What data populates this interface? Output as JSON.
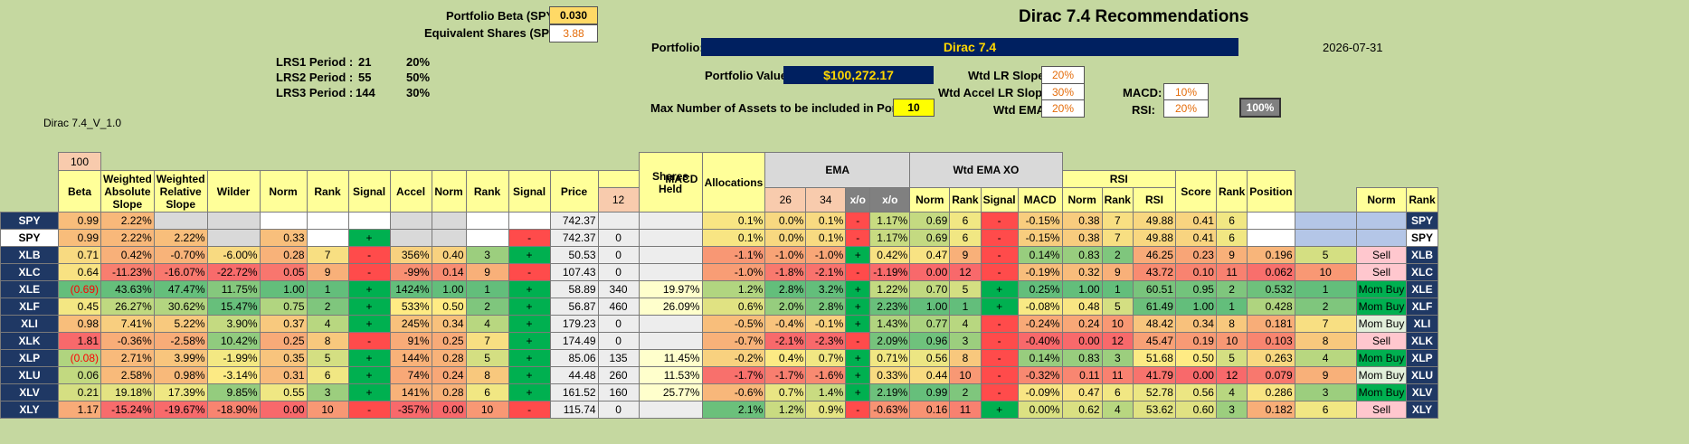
{
  "header": {
    "portfolio_beta_label": "Portfolio Beta (SPY):",
    "portfolio_beta_value": "0.030",
    "equiv_shares_label": "Equivalent Shares (SPY):",
    "equiv_shares_value": "3.88",
    "title": "Dirac 7.4 Recommendations",
    "portfolio_label": "Portfolio:",
    "portfolio_name": "Dirac 7.4",
    "date": "2026-07-31",
    "lrs": [
      {
        "label": "LRS1 Period :",
        "period": "21",
        "pct": "20%"
      },
      {
        "label": "LRS2 Period :",
        "period": "55",
        "pct": "50%"
      },
      {
        "label": "LRS3 Period :",
        "period": "144",
        "pct": "30%"
      }
    ],
    "portfolio_value_label": "Portfolio Value:",
    "portfolio_value": "$100,272.17",
    "max_assets_label": "Max Number of Assets to be included in Portfolio:",
    "max_assets_value": "10",
    "version": "Dirac 7.4_V_1.0",
    "weights": {
      "wtd_lr_slope_label": "Wtd LR Slope:",
      "wtd_lr_slope": "20%",
      "wtd_accel_label": "Wtd Accel LR Slope:",
      "wtd_accel": "30%",
      "wtd_ema_label": "Wtd EMA:",
      "wtd_ema": "20%",
      "macd_label": "MACD:",
      "macd": "10%",
      "rsi_label": "RSI:",
      "rsi": "20%",
      "total": "100%"
    }
  },
  "table": {
    "beta_weight": "100",
    "group_ema": "EMA",
    "group_wtd_ema_xo": "Wtd EMA XO",
    "group_macd": "MACD",
    "group_rsi": "RSI",
    "col_shares_held": "Shares Held",
    "col_allocations": "Allocations",
    "columns": [
      "Beta",
      "Weighted Absolute Slope",
      "Weighted Relative Slope",
      "Wilder",
      "Norm",
      "Rank",
      "Signal",
      "Accel",
      "Norm",
      "Rank",
      "Signal",
      "Price",
      "12",
      "26",
      "34",
      "x/o",
      "x/o",
      "Norm",
      "Rank",
      "Signal",
      "MACD",
      "Norm",
      "Rank",
      "RSI",
      "Norm",
      "Rank",
      "Score",
      "Rank",
      "Position"
    ],
    "rows": [
      {
        "t": "SPY",
        "beta": "0.99",
        "was": "2.22%",
        "wrs": "",
        "wil": "",
        "n1": "",
        "r1": "",
        "s1": "",
        "acc": "",
        "n2": "",
        "r2": "",
        "s2": "",
        "price": "742.37",
        "sh": "",
        "alloc": "",
        "e12": "0.1%",
        "e26": "0.0%",
        "e34": "0.1%",
        "xo": "-",
        "wxo": "1.17%",
        "n3": "0.69",
        "r3": "6",
        "s3": "-",
        "macd": "-0.15%",
        "n4": "0.38",
        "r4": "7",
        "rsi": "49.88",
        "n5": "0.41",
        "r5": "6",
        "score": "",
        "rk": "",
        "pos": ""
      },
      {
        "t": "SPY",
        "beta": "0.99",
        "was": "2.22%",
        "wrs": "2.22%",
        "wil": "",
        "n1": "0.33",
        "r1": "",
        "s1": "+",
        "acc": "",
        "n2": "",
        "r2": "",
        "s2": "-",
        "price": "742.37",
        "sh": "0",
        "alloc": "",
        "e12": "0.1%",
        "e26": "0.0%",
        "e34": "0.1%",
        "xo": "-",
        "wxo": "1.17%",
        "n3": "0.69",
        "r3": "6",
        "s3": "-",
        "macd": "-0.15%",
        "n4": "0.38",
        "r4": "7",
        "rsi": "49.88",
        "n5": "0.41",
        "r5": "6",
        "score": "",
        "rk": "",
        "pos": ""
      },
      {
        "t": "XLB",
        "beta": "0.71",
        "was": "0.42%",
        "wrs": "-0.70%",
        "wil": "-6.00%",
        "n1": "0.28",
        "r1": "7",
        "s1": "-",
        "acc": "356%",
        "n2": "0.40",
        "r2": "3",
        "s2": "+",
        "price": "50.53",
        "sh": "0",
        "alloc": "",
        "e12": "-1.1%",
        "e26": "-1.0%",
        "e34": "-1.0%",
        "xo": "+",
        "wxo": "0.42%",
        "n3": "0.47",
        "r3": "9",
        "s3": "-",
        "macd": "0.14%",
        "n4": "0.83",
        "r4": "2",
        "rsi": "46.25",
        "n5": "0.23",
        "r5": "9",
        "score": "0.196",
        "rk": "5",
        "pos": "Sell"
      },
      {
        "t": "XLC",
        "beta": "0.64",
        "was": "-11.23%",
        "wrs": "-16.07%",
        "wil": "-22.72%",
        "n1": "0.05",
        "r1": "9",
        "s1": "-",
        "acc": "-99%",
        "n2": "0.14",
        "r2": "9",
        "s2": "-",
        "price": "107.43",
        "sh": "0",
        "alloc": "",
        "e12": "-1.0%",
        "e26": "-1.8%",
        "e34": "-2.1%",
        "xo": "-",
        "wxo": "-1.19%",
        "n3": "0.00",
        "r3": "12",
        "s3": "-",
        "macd": "-0.19%",
        "n4": "0.32",
        "r4": "9",
        "rsi": "43.72",
        "n5": "0.10",
        "r5": "11",
        "score": "0.062",
        "rk": "10",
        "pos": "Sell"
      },
      {
        "t": "XLE",
        "beta": "(0.69)",
        "was": "43.63%",
        "wrs": "47.47%",
        "wil": "11.75%",
        "n1": "1.00",
        "r1": "1",
        "s1": "+",
        "acc": "1424%",
        "n2": "1.00",
        "r2": "1",
        "s2": "+",
        "price": "58.89",
        "sh": "340",
        "alloc": "19.97%",
        "e12": "1.2%",
        "e26": "2.8%",
        "e34": "3.2%",
        "xo": "+",
        "wxo": "1.22%",
        "n3": "0.70",
        "r3": "5",
        "s3": "+",
        "macd": "0.25%",
        "n4": "1.00",
        "r4": "1",
        "rsi": "60.51",
        "n5": "0.95",
        "r5": "2",
        "score": "0.532",
        "rk": "1",
        "pos": "Mom Buy"
      },
      {
        "t": "XLF",
        "beta": "0.45",
        "was": "26.27%",
        "wrs": "30.62%",
        "wil": "15.47%",
        "n1": "0.75",
        "r1": "2",
        "s1": "+",
        "acc": "533%",
        "n2": "0.50",
        "r2": "2",
        "s2": "+",
        "price": "56.87",
        "sh": "460",
        "alloc": "26.09%",
        "e12": "0.6%",
        "e26": "2.0%",
        "e34": "2.8%",
        "xo": "+",
        "wxo": "2.23%",
        "n3": "1.00",
        "r3": "1",
        "s3": "+",
        "macd": "-0.08%",
        "n4": "0.48",
        "r4": "5",
        "rsi": "61.49",
        "n5": "1.00",
        "r5": "1",
        "score": "0.428",
        "rk": "2",
        "pos": "Mom Buy"
      },
      {
        "t": "XLI",
        "beta": "0.98",
        "was": "7.41%",
        "wrs": "5.22%",
        "wil": "3.90%",
        "n1": "0.37",
        "r1": "4",
        "s1": "+",
        "acc": "245%",
        "n2": "0.34",
        "r2": "4",
        "s2": "+",
        "price": "179.23",
        "sh": "0",
        "alloc": "",
        "e12": "-0.5%",
        "e26": "-0.4%",
        "e34": "-0.1%",
        "xo": "+",
        "wxo": "1.43%",
        "n3": "0.77",
        "r3": "4",
        "s3": "-",
        "macd": "-0.24%",
        "n4": "0.24",
        "r4": "10",
        "rsi": "48.42",
        "n5": "0.34",
        "r5": "8",
        "score": "0.181",
        "rk": "7",
        "pos": "Mom Buy"
      },
      {
        "t": "XLK",
        "beta": "1.81",
        "was": "-0.36%",
        "wrs": "-2.58%",
        "wil": "10.42%",
        "n1": "0.25",
        "r1": "8",
        "s1": "-",
        "acc": "91%",
        "n2": "0.25",
        "r2": "7",
        "s2": "+",
        "price": "174.49",
        "sh": "0",
        "alloc": "",
        "e12": "-0.7%",
        "e26": "-2.1%",
        "e34": "-2.3%",
        "xo": "-",
        "wxo": "2.09%",
        "n3": "0.96",
        "r3": "3",
        "s3": "-",
        "macd": "-0.40%",
        "n4": "0.00",
        "r4": "12",
        "rsi": "45.47",
        "n5": "0.19",
        "r5": "10",
        "score": "0.103",
        "rk": "8",
        "pos": "Sell"
      },
      {
        "t": "XLP",
        "beta": "(0.08)",
        "was": "2.71%",
        "wrs": "3.99%",
        "wil": "-1.99%",
        "n1": "0.35",
        "r1": "5",
        "s1": "+",
        "acc": "144%",
        "n2": "0.28",
        "r2": "5",
        "s2": "+",
        "price": "85.06",
        "sh": "135",
        "alloc": "11.45%",
        "e12": "-0.2%",
        "e26": "0.4%",
        "e34": "0.7%",
        "xo": "+",
        "wxo": "0.71%",
        "n3": "0.56",
        "r3": "8",
        "s3": "-",
        "macd": "0.14%",
        "n4": "0.83",
        "r4": "3",
        "rsi": "51.68",
        "n5": "0.50",
        "r5": "5",
        "score": "0.263",
        "rk": "4",
        "pos": "Mom Buy"
      },
      {
        "t": "XLU",
        "beta": "0.06",
        "was": "2.58%",
        "wrs": "0.98%",
        "wil": "-3.14%",
        "n1": "0.31",
        "r1": "6",
        "s1": "+",
        "acc": "74%",
        "n2": "0.24",
        "r2": "8",
        "s2": "+",
        "price": "44.48",
        "sh": "260",
        "alloc": "11.53%",
        "e12": "-1.7%",
        "e26": "-1.7%",
        "e34": "-1.6%",
        "xo": "+",
        "wxo": "0.33%",
        "n3": "0.44",
        "r3": "10",
        "s3": "-",
        "macd": "-0.32%",
        "n4": "0.11",
        "r4": "11",
        "rsi": "41.79",
        "n5": "0.00",
        "r5": "12",
        "score": "0.079",
        "rk": "9",
        "pos": "Mom Buy"
      },
      {
        "t": "XLV",
        "beta": "0.21",
        "was": "19.18%",
        "wrs": "17.39%",
        "wil": "9.85%",
        "n1": "0.55",
        "r1": "3",
        "s1": "+",
        "acc": "141%",
        "n2": "0.28",
        "r2": "6",
        "s2": "+",
        "price": "161.52",
        "sh": "160",
        "alloc": "25.77%",
        "e12": "-0.6%",
        "e26": "0.7%",
        "e34": "1.4%",
        "xo": "+",
        "wxo": "2.19%",
        "n3": "0.99",
        "r3": "2",
        "s3": "-",
        "macd": "-0.09%",
        "n4": "0.47",
        "r4": "6",
        "rsi": "52.78",
        "n5": "0.56",
        "r5": "4",
        "score": "0.286",
        "rk": "3",
        "pos": "Mom Buy"
      },
      {
        "t": "XLY",
        "beta": "1.17",
        "was": "-15.24%",
        "wrs": "-19.67%",
        "wil": "-18.90%",
        "n1": "0.00",
        "r1": "10",
        "s1": "-",
        "acc": "-357%",
        "n2": "0.00",
        "r2": "10",
        "s2": "-",
        "price": "115.74",
        "sh": "0",
        "alloc": "",
        "e12": "2.1%",
        "e26": "1.2%",
        "e34": "0.9%",
        "xo": "-",
        "wxo": "-0.63%",
        "n3": "0.16",
        "r3": "11",
        "s3": "+",
        "macd": "0.00%",
        "n4": "0.62",
        "r4": "4",
        "rsi": "53.62",
        "n5": "0.60",
        "r5": "3",
        "score": "0.182",
        "rk": "6",
        "pos": "Sell"
      }
    ]
  }
}
